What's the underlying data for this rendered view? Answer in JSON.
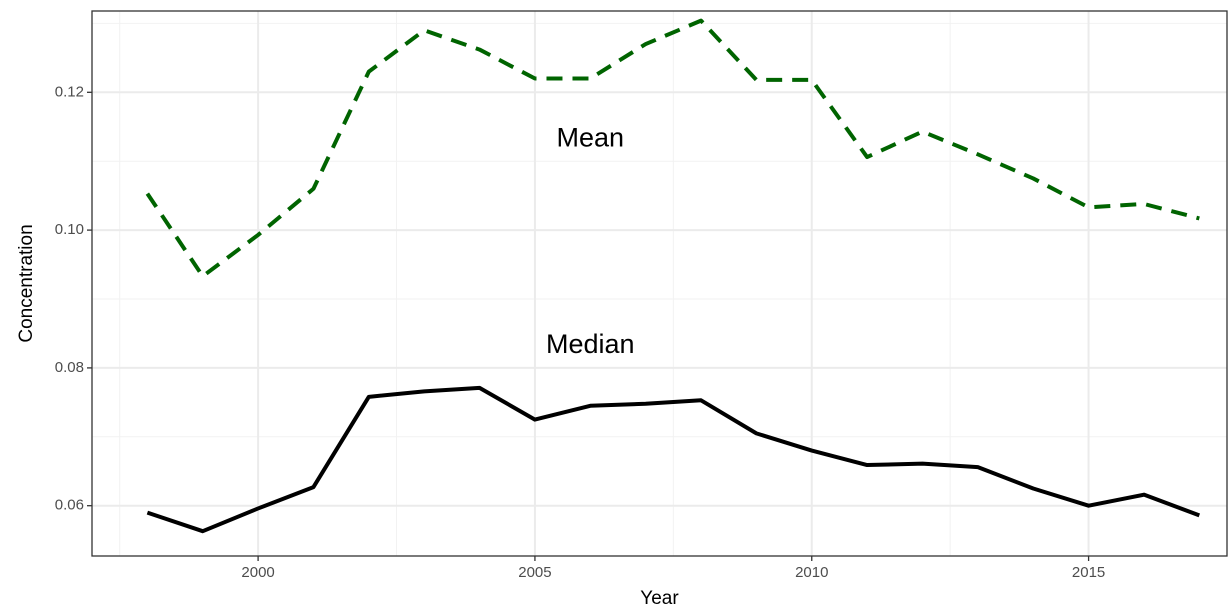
{
  "chart_data": {
    "type": "line",
    "title": "",
    "xlabel": "Year",
    "ylabel": "Concentration",
    "x": [
      1998,
      1999,
      2000,
      2001,
      2002,
      2003,
      2004,
      2005,
      2006,
      2007,
      2008,
      2009,
      2010,
      2011,
      2012,
      2013,
      2014,
      2015,
      2016,
      2017
    ],
    "xlim": [
      1997.0,
      2017.5
    ],
    "ylim": [
      0.0527,
      0.1318
    ],
    "x_ticks": [
      2000,
      2005,
      2010,
      2015
    ],
    "x_tick_labels": [
      "2000",
      "2005",
      "2010",
      "2015"
    ],
    "y_ticks": [
      0.06,
      0.08,
      0.1,
      0.12
    ],
    "y_tick_labels": [
      "0.06",
      "0.08",
      "0.10",
      "0.12"
    ],
    "grid": true,
    "legend": "none",
    "series": [
      {
        "name": "Mean",
        "color": "#006400",
        "dash": "dashed",
        "values": [
          0.1053,
          0.0933,
          0.0993,
          0.106,
          0.123,
          0.129,
          0.1262,
          0.122,
          0.122,
          0.127,
          0.1304,
          0.1218,
          0.1218,
          0.1106,
          0.1143,
          0.111,
          0.1075,
          0.1033,
          0.1038,
          0.1017
        ]
      },
      {
        "name": "Median",
        "color": "#000000",
        "dash": "solid",
        "values": [
          0.059,
          0.0563,
          0.0596,
          0.0627,
          0.0758,
          0.0766,
          0.0771,
          0.0725,
          0.0745,
          0.0748,
          0.0753,
          0.0705,
          0.068,
          0.0659,
          0.0661,
          0.0656,
          0.0625,
          0.06,
          0.0616,
          0.0586
        ]
      }
    ],
    "annotations": [
      {
        "text": "Mean",
        "x": 2006.0,
        "y": 0.1132
      },
      {
        "text": "Median",
        "x": 2006.0,
        "y": 0.0832
      }
    ]
  }
}
